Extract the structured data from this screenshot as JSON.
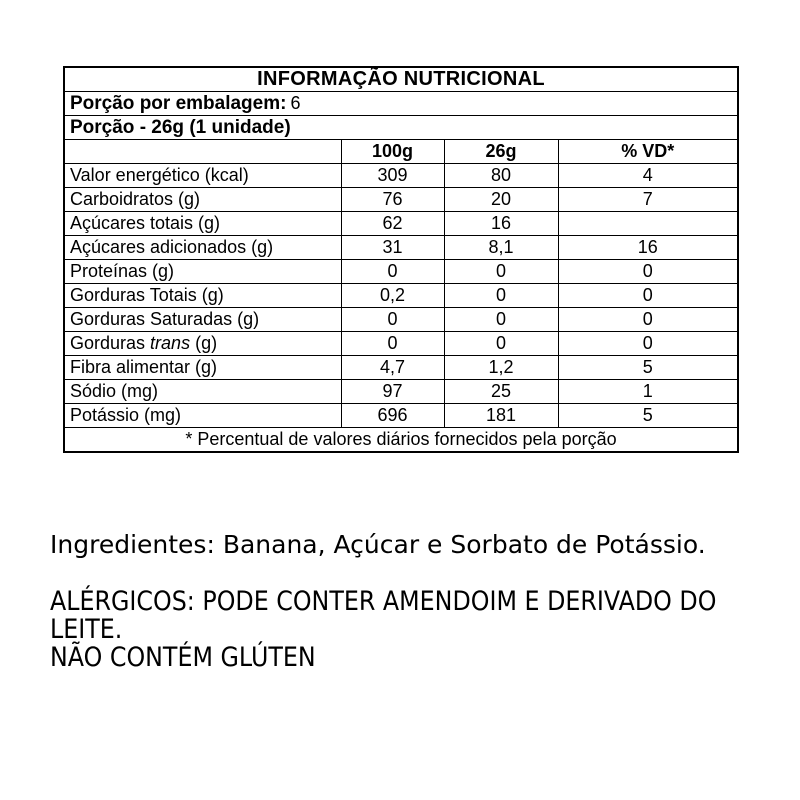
{
  "nutrition_table": {
    "title": "INFORMAÇÃO NUTRICIONAL",
    "servings_per_package_label": "Porção por embalagem:",
    "servings_per_package_value": "6",
    "portion_label": "Porção - 26g (1 unidade)",
    "column_headers": [
      "100g",
      "26g",
      "% VD*"
    ],
    "rows": [
      {
        "label": "Valor energético (kcal)",
        "indent": 0,
        "v100g": "309",
        "v26g": "80",
        "vd": "4"
      },
      {
        "label": "Carboidratos (g)",
        "indent": 0,
        "v100g": "76",
        "v26g": "20",
        "vd": "7"
      },
      {
        "label": "Açúcares totais (g)",
        "indent": 1,
        "v100g": "62",
        "v26g": "16",
        "vd": ""
      },
      {
        "label": "Açúcares adicionados (g)",
        "indent": 2,
        "v100g": "31",
        "v26g": "8,1",
        "vd": "16"
      },
      {
        "label": "Proteínas (g)",
        "indent": 0,
        "v100g": "0",
        "v26g": "0",
        "vd": "0"
      },
      {
        "label": "Gorduras Totais (g)",
        "indent": 0,
        "v100g": "0,2",
        "v26g": "0",
        "vd": "0"
      },
      {
        "label": "Gorduras Saturadas (g)",
        "indent": 1,
        "v100g": "0",
        "v26g": "0",
        "vd": "0"
      },
      {
        "label": "Gorduras trans (g)",
        "indent": 1,
        "italic_segment": "trans",
        "v100g": "0",
        "v26g": "0",
        "vd": "0"
      },
      {
        "label": "Fibra alimentar (g)",
        "indent": 0,
        "v100g": "4,7",
        "v26g": "1,2",
        "vd": "5"
      },
      {
        "label": "Sódio (mg)",
        "indent": 0,
        "v100g": "97",
        "v26g": "25",
        "vd": "1"
      },
      {
        "label": "Potássio (mg)",
        "indent": 0,
        "v100g": "696",
        "v26g": "181",
        "vd": "5"
      }
    ],
    "footnote": "* Percentual de valores diários fornecidos pela porção"
  },
  "ingredients": {
    "text": "Ingredientes: Banana, Açúcar e Sorbato de Potássio."
  },
  "allergens": {
    "line1": "ALÉRGICOS: PODE CONTER AMENDOIM E DERIVADO DO",
    "line2": "LEITE.",
    "line3": "NÃO CONTÉM GLÚTEN"
  }
}
